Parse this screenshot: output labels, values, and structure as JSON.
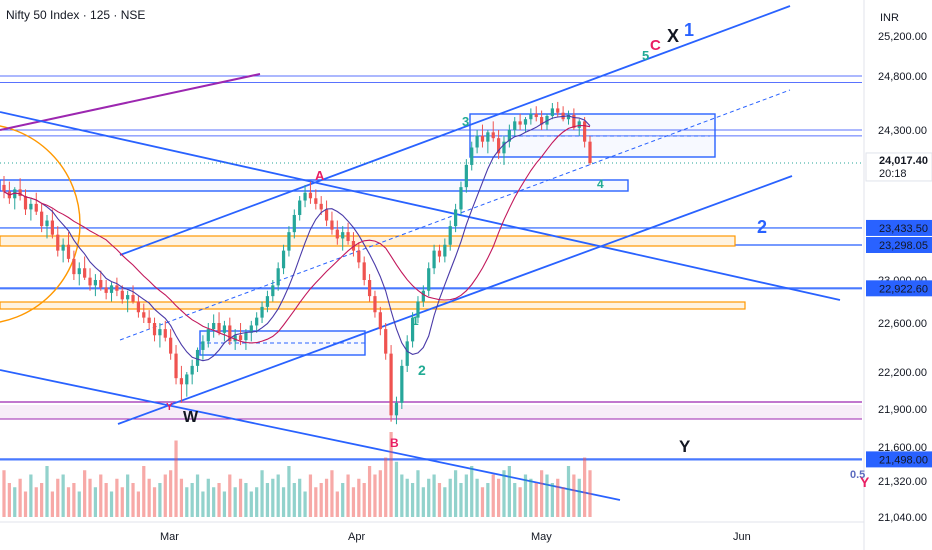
{
  "header": {
    "title": "Nifty 50 Index · 125 · NSE",
    "currency": "INR"
  },
  "colors": {
    "up": "#26a69a",
    "down": "#ef5350",
    "channel": "#2962ff",
    "purple": "#9c27b0",
    "orange": "#ff9800",
    "wave": "#22ab94"
  },
  "chart_data": {
    "type": "candlestick",
    "title": "Nifty 50 Index · 125 · NSE",
    "y_axis_ticks": [
      {
        "value": 25200,
        "label": "25,200.00"
      },
      {
        "value": 24800,
        "label": "24,800.00"
      },
      {
        "value": 24300,
        "label": "24,300.00"
      },
      {
        "value": 23000,
        "label": "23,000.00"
      },
      {
        "value": 22600,
        "label": "22,600.00"
      },
      {
        "value": 22200,
        "label": "22,200.00"
      },
      {
        "value": 21900,
        "label": "21,900.00"
      },
      {
        "value": 21600,
        "label": "21,600.00"
      },
      {
        "value": 21320,
        "label": "21,320.00"
      },
      {
        "value": 21040,
        "label": "21,040.00"
      }
    ],
    "x_axis_ticks": [
      "Mar",
      "Apr",
      "May",
      "Jun"
    ],
    "price_labels": [
      {
        "value": 24017.4,
        "label": "24,017.40",
        "sub": "20:18",
        "style": "last"
      },
      {
        "value": 23433.5,
        "label": "23,433.50",
        "style": "level"
      },
      {
        "value": 23298.05,
        "label": "23,298.05",
        "style": "level"
      },
      {
        "value": 22922.6,
        "label": "22,922.60",
        "style": "level"
      },
      {
        "value": 21498.0,
        "label": "21,498.00",
        "style": "level"
      }
    ],
    "wave_labels": [
      {
        "text": "W",
        "color": "#131722"
      },
      {
        "text": "A",
        "color": "#e91e63"
      },
      {
        "text": "B",
        "color": "#e91e63"
      },
      {
        "text": "1",
        "color": "#22ab94"
      },
      {
        "text": "2",
        "color": "#22ab94"
      },
      {
        "text": "3",
        "color": "#22ab94"
      },
      {
        "text": "4",
        "color": "#22ab94"
      },
      {
        "text": "5",
        "color": "#22ab94"
      },
      {
        "text": "C",
        "color": "#e91e63"
      },
      {
        "text": "X",
        "color": "#131722"
      },
      {
        "text": "1",
        "color": "#2962ff"
      },
      {
        "text": "2",
        "color": "#2962ff"
      },
      {
        "text": "Y",
        "color": "#131722"
      },
      {
        "text": "0.5",
        "color": "#5b6bbf"
      },
      {
        "text": "Y",
        "color": "#e91e63"
      }
    ],
    "levels": [
      24800,
      24700,
      24300,
      24200,
      24100,
      23900,
      23433.5,
      23298.05,
      22922.6,
      21498,
      21900,
      21800
    ],
    "ohlc": [
      [
        23820,
        23900,
        23700,
        23760
      ],
      [
        23760,
        23850,
        23650,
        23700
      ],
      [
        23700,
        23800,
        23600,
        23780
      ],
      [
        23780,
        23880,
        23680,
        23720
      ],
      [
        23720,
        23780,
        23550,
        23600
      ],
      [
        23600,
        23700,
        23500,
        23650
      ],
      [
        23650,
        23750,
        23550,
        23580
      ],
      [
        23580,
        23650,
        23400,
        23450
      ],
      [
        23450,
        23550,
        23350,
        23500
      ],
      [
        23500,
        23600,
        23350,
        23380
      ],
      [
        23380,
        23450,
        23200,
        23250
      ],
      [
        23250,
        23350,
        23150,
        23300
      ],
      [
        23300,
        23400,
        23150,
        23180
      ],
      [
        23180,
        23250,
        23000,
        23050
      ],
      [
        23050,
        23150,
        22950,
        23100
      ],
      [
        23100,
        23200,
        23000,
        23020
      ],
      [
        23020,
        23100,
        22900,
        22950
      ],
      [
        22950,
        23050,
        22850,
        23000
      ],
      [
        23000,
        23080,
        22900,
        22930
      ],
      [
        22930,
        23000,
        22820,
        22880
      ],
      [
        22880,
        22980,
        22800,
        22950
      ],
      [
        22950,
        23020,
        22850,
        22900
      ],
      [
        22900,
        22950,
        22780,
        22820
      ],
      [
        22820,
        22900,
        22700,
        22860
      ],
      [
        22860,
        22950,
        22780,
        22800
      ],
      [
        22800,
        22850,
        22650,
        22700
      ],
      [
        22700,
        22780,
        22600,
        22650
      ],
      [
        22650,
        22720,
        22550,
        22600
      ],
      [
        22600,
        22650,
        22450,
        22500
      ],
      [
        22500,
        22600,
        22400,
        22550
      ],
      [
        22550,
        22620,
        22450,
        22480
      ],
      [
        22480,
        22550,
        22300,
        22350
      ],
      [
        22350,
        22420,
        22100,
        22150
      ],
      [
        22150,
        22250,
        21950,
        22100
      ],
      [
        22100,
        22200,
        22000,
        22180
      ],
      [
        22180,
        22300,
        22100,
        22250
      ],
      [
        22250,
        22400,
        22200,
        22380
      ],
      [
        22380,
        22500,
        22300,
        22450
      ],
      [
        22450,
        22600,
        22400,
        22550
      ],
      [
        22550,
        22680,
        22480,
        22600
      ],
      [
        22600,
        22700,
        22500,
        22520
      ],
      [
        22520,
        22620,
        22450,
        22580
      ],
      [
        22580,
        22650,
        22420,
        22450
      ],
      [
        22450,
        22550,
        22380,
        22500
      ],
      [
        22500,
        22600,
        22420,
        22460
      ],
      [
        22460,
        22550,
        22380,
        22520
      ],
      [
        22520,
        22620,
        22450,
        22580
      ],
      [
        22580,
        22700,
        22520,
        22650
      ],
      [
        22650,
        22800,
        22600,
        22750
      ],
      [
        22750,
        22900,
        22700,
        22850
      ],
      [
        22850,
        23000,
        22800,
        22950
      ],
      [
        22950,
        23150,
        22900,
        23100
      ],
      [
        23100,
        23300,
        23050,
        23250
      ],
      [
        23250,
        23450,
        23200,
        23400
      ],
      [
        23400,
        23600,
        23350,
        23550
      ],
      [
        23550,
        23720,
        23500,
        23680
      ],
      [
        23680,
        23820,
        23620,
        23750
      ],
      [
        23750,
        23850,
        23650,
        23700
      ],
      [
        23700,
        23780,
        23600,
        23650
      ],
      [
        23650,
        23720,
        23550,
        23600
      ],
      [
        23600,
        23680,
        23450,
        23500
      ],
      [
        23500,
        23580,
        23380,
        23420
      ],
      [
        23420,
        23500,
        23300,
        23350
      ],
      [
        23350,
        23450,
        23250,
        23400
      ],
      [
        23400,
        23480,
        23300,
        23330
      ],
      [
        23330,
        23400,
        23200,
        23250
      ],
      [
        23250,
        23320,
        23100,
        23150
      ],
      [
        23150,
        23200,
        22950,
        23000
      ],
      [
        23000,
        23050,
        22800,
        22850
      ],
      [
        22850,
        22900,
        22650,
        22700
      ],
      [
        22700,
        22750,
        22500,
        22550
      ],
      [
        22550,
        22600,
        22300,
        22350
      ],
      [
        22350,
        22420,
        21800,
        21850
      ],
      [
        21850,
        22000,
        21780,
        21950
      ],
      [
        21950,
        22300,
        21900,
        22250
      ],
      [
        22250,
        22500,
        22200,
        22450
      ],
      [
        22450,
        22700,
        22400,
        22650
      ],
      [
        22650,
        22850,
        22600,
        22800
      ],
      [
        22800,
        22950,
        22750,
        22900
      ],
      [
        22900,
        23150,
        22850,
        23100
      ],
      [
        23100,
        23300,
        23050,
        23250
      ],
      [
        23250,
        23300,
        23150,
        23200
      ],
      [
        23200,
        23350,
        23150,
        23300
      ],
      [
        23300,
        23500,
        23250,
        23450
      ],
      [
        23450,
        23650,
        23400,
        23600
      ],
      [
        23600,
        23850,
        23550,
        23800
      ],
      [
        23800,
        24050,
        23750,
        24000
      ],
      [
        24000,
        24200,
        23950,
        24150
      ],
      [
        24150,
        24300,
        24100,
        24250
      ],
      [
        24250,
        24350,
        24150,
        24200
      ],
      [
        24200,
        24300,
        24100,
        24280
      ],
      [
        24280,
        24380,
        24200,
        24230
      ],
      [
        24230,
        24300,
        24050,
        24100
      ],
      [
        24100,
        24250,
        24000,
        24200
      ],
      [
        24200,
        24350,
        24150,
        24300
      ],
      [
        24300,
        24420,
        24250,
        24380
      ],
      [
        24380,
        24450,
        24300,
        24350
      ],
      [
        24350,
        24420,
        24280,
        24400
      ],
      [
        24400,
        24500,
        24350,
        24450
      ],
      [
        24450,
        24520,
        24380,
        24420
      ],
      [
        24420,
        24480,
        24300,
        24350
      ],
      [
        24350,
        24450,
        24300,
        24430
      ],
      [
        24430,
        24550,
        24400,
        24500
      ],
      [
        24500,
        24560,
        24420,
        24460
      ],
      [
        24460,
        24520,
        24380,
        24400
      ],
      [
        24400,
        24480,
        24350,
        24440
      ],
      [
        24440,
        24500,
        24300,
        24320
      ],
      [
        24320,
        24400,
        24250,
        24380
      ],
      [
        24380,
        24420,
        24150,
        24200
      ],
      [
        24200,
        24250,
        24000,
        24017
      ]
    ],
    "volume": [
      0.55,
      0.4,
      0.35,
      0.45,
      0.3,
      0.5,
      0.35,
      0.4,
      0.6,
      0.3,
      0.45,
      0.5,
      0.35,
      0.4,
      0.3,
      0.55,
      0.45,
      0.35,
      0.5,
      0.4,
      0.3,
      0.45,
      0.35,
      0.5,
      0.4,
      0.3,
      0.6,
      0.45,
      0.35,
      0.4,
      0.5,
      0.55,
      0.9,
      0.45,
      0.35,
      0.4,
      0.5,
      0.3,
      0.45,
      0.35,
      0.4,
      0.3,
      0.5,
      0.35,
      0.45,
      0.4,
      0.3,
      0.35,
      0.55,
      0.4,
      0.45,
      0.5,
      0.35,
      0.6,
      0.4,
      0.45,
      0.3,
      0.5,
      0.35,
      0.4,
      0.45,
      0.55,
      0.3,
      0.4,
      0.5,
      0.35,
      0.45,
      0.4,
      0.6,
      0.5,
      0.55,
      0.7,
      1.0,
      0.65,
      0.5,
      0.45,
      0.4,
      0.55,
      0.35,
      0.45,
      0.5,
      0.4,
      0.35,
      0.45,
      0.55,
      0.4,
      0.5,
      0.6,
      0.45,
      0.35,
      0.4,
      0.5,
      0.45,
      0.55,
      0.6,
      0.4,
      0.35,
      0.5,
      0.45,
      0.4,
      0.55,
      0.5,
      0.4,
      0.45,
      0.35,
      0.6,
      0.5,
      0.45,
      0.7,
      0.55
    ]
  }
}
